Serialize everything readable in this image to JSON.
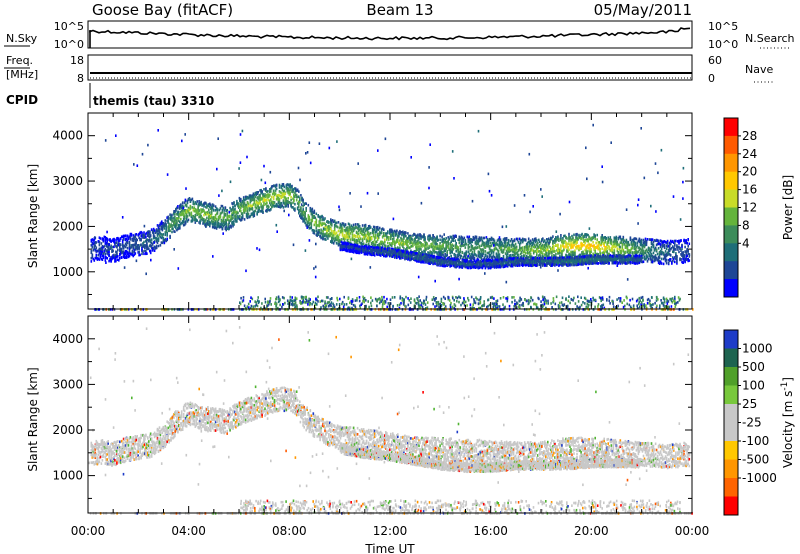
{
  "header": {
    "station": "Goose Bay (fitACF)",
    "beam": "Beam 13",
    "date": "05/May/2011",
    "cpid_label": "CPID",
    "cpid_value": "themis (tau) 3310"
  },
  "noise_panel": {
    "left_label": "N.Sky",
    "left_ticks": [
      "10^5",
      "10^0"
    ],
    "right_ticks": [
      "10^5",
      "10^0"
    ],
    "right_label": "N.Search"
  },
  "freq_panel": {
    "left_label_1": "Freq.",
    "left_label_2": "[MHz]",
    "left_ticks": [
      "18",
      "8"
    ],
    "right_ticks": [
      "60",
      "0"
    ],
    "right_label": "Nave"
  },
  "chart_data": [
    {
      "type": "heatmap",
      "panel": "power",
      "ylabel": "Slant Range [km]",
      "xlabel": "Time UT",
      "x_ticks": [
        "00:00",
        "04:00",
        "08:00",
        "12:00",
        "16:00",
        "20:00",
        "00:00"
      ],
      "xlim_hours": [
        0,
        24
      ],
      "ylim": [
        180,
        4500
      ],
      "y_ticks": [
        "4000",
        "3000",
        "2000",
        "1000"
      ],
      "y_tick_values": [
        4000,
        3000,
        2000,
        1000
      ],
      "colorbar": {
        "label": "Power [dB]",
        "tick_labels": [
          "28",
          "24",
          "20",
          "16",
          "12",
          "8",
          "4"
        ],
        "colors": [
          "#ff0000",
          "#ff5a00",
          "#ff9600",
          "#ffc800",
          "#c8dc28",
          "#64b43c",
          "#3c8c5a",
          "#1e6e78",
          "#1e4696",
          "#0000ff"
        ]
      },
      "traces": [
        {
          "x": [
            0.1,
            0.5,
            1.0,
            1.5,
            2.0,
            2.5,
            3.0,
            3.5,
            4.0,
            4.5,
            5.0,
            5.5,
            6.0,
            6.5,
            7.0,
            7.5,
            8.0,
            8.3,
            8.6,
            9.0,
            9.5,
            10.0,
            11.0,
            12.0,
            13.0,
            14.0,
            15.0,
            16.0,
            17.0,
            18.0,
            19.0,
            20.0,
            21.0,
            22.0,
            23.0,
            23.9
          ],
          "y": [
            1500,
            1550,
            1500,
            1600,
            1650,
            1700,
            1900,
            2200,
            2400,
            2300,
            2250,
            2200,
            2400,
            2500,
            2600,
            2700,
            2700,
            2600,
            2300,
            2100,
            1950,
            1850,
            1800,
            1700,
            1600,
            1600,
            1550,
            1550,
            1500,
            1500,
            1600,
            1600,
            1550,
            1500,
            1450,
            1500
          ],
          "db": [
            6,
            5,
            6,
            6,
            7,
            8,
            10,
            14,
            16,
            16,
            15,
            14,
            15,
            16,
            18,
            18,
            17,
            15,
            14,
            16,
            17,
            18,
            17,
            16,
            15,
            14,
            13,
            13,
            14,
            16,
            20,
            22,
            18,
            12,
            8,
            6
          ]
        },
        {
          "x": [
            10.0,
            11.0,
            12.0,
            13.0,
            14.0,
            15.0,
            16.0,
            17.0,
            18.0,
            19.0,
            20.0,
            21.0,
            22.0
          ],
          "y": [
            1600,
            1500,
            1450,
            1350,
            1250,
            1200,
            1200,
            1250,
            1250,
            1250,
            1300,
            1300,
            1300
          ],
          "db": [
            5,
            6,
            7,
            8,
            8,
            7,
            7,
            8,
            8,
            9,
            10,
            9,
            7
          ]
        }
      ]
    },
    {
      "type": "heatmap",
      "panel": "velocity",
      "ylabel": "Slant Range [km]",
      "xlabel": "Time UT",
      "x_ticks": [
        "00:00",
        "04:00",
        "08:00",
        "12:00",
        "16:00",
        "20:00",
        "00:00"
      ],
      "xlim_hours": [
        0,
        24
      ],
      "ylim": [
        180,
        4500
      ],
      "y_ticks": [
        "4000",
        "3000",
        "2000",
        "1000"
      ],
      "y_tick_values": [
        4000,
        3000,
        2000,
        1000
      ],
      "colorbar": {
        "label": "Velocity [m s",
        "label_superscript": "-1",
        "label_end": "]",
        "tick_labels": [
          "1000",
          "500",
          "100",
          "25",
          "-25",
          "-100",
          "-500",
          "-1000"
        ],
        "colors": [
          "#1e3cc8",
          "#1e6450",
          "#50a02a",
          "#78c83c",
          "#c8c8c8",
          "#c8c8c8",
          "#ffc800",
          "#ff9600",
          "#ff6400",
          "#ff0000"
        ]
      }
    }
  ]
}
